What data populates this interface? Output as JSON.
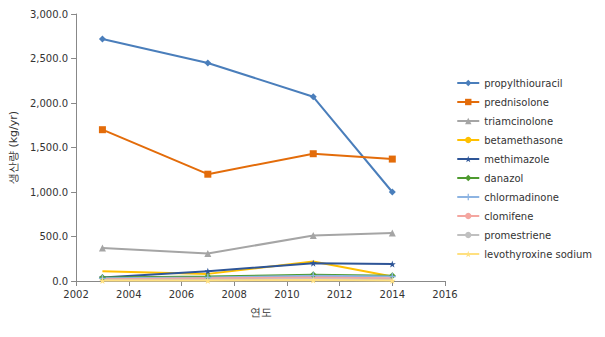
{
  "chart_data": {
    "type": "line",
    "x_label": "연도",
    "y_label": "생산량 (kg/yr)",
    "x": [
      2003,
      2007,
      2011,
      2014
    ],
    "xlim": [
      2002,
      2016
    ],
    "xticks": [
      2002,
      2004,
      2006,
      2008,
      2010,
      2012,
      2014,
      2016
    ],
    "ylim": [
      0,
      3000
    ],
    "yticks": [
      {
        "value": 0,
        "label": "0.0"
      },
      {
        "value": 500,
        "label": "500.0"
      },
      {
        "value": 1000,
        "label": "1,000.0"
      },
      {
        "value": 1500,
        "label": "1,500.0"
      },
      {
        "value": 2000,
        "label": "2,000.0"
      },
      {
        "value": 2500,
        "label": "2,500.0"
      },
      {
        "value": 3000,
        "label": "3,000.0"
      }
    ],
    "grid": false,
    "legend": "right",
    "series": [
      {
        "name": "propylthiouracil",
        "color": "#4a7ebb",
        "marker": "diamond",
        "values": [
          2720,
          2450,
          2070,
          1000
        ]
      },
      {
        "name": "prednisolone",
        "color": "#e36c0a",
        "marker": "square",
        "values": [
          1700,
          1200,
          1430,
          1370
        ]
      },
      {
        "name": "triamcinolone",
        "color": "#a5a5a5",
        "marker": "triangle",
        "values": [
          370,
          310,
          510,
          540
        ]
      },
      {
        "name": "betamethasone",
        "color": "#ffc000",
        "marker": "none",
        "values": [
          110,
          80,
          220,
          50
        ]
      },
      {
        "name": "methimazole",
        "color": "#2e5597",
        "marker": "star",
        "values": [
          40,
          110,
          200,
          190
        ]
      },
      {
        "name": "danazol",
        "color": "#4e9a2f",
        "marker": "diamond",
        "values": [
          40,
          50,
          70,
          60
        ]
      },
      {
        "name": "chlormadinone",
        "color": "#8db4e2",
        "marker": "plus",
        "values": [
          30,
          40,
          60,
          50
        ]
      },
      {
        "name": "clomifene",
        "color": "#f4a6a0",
        "marker": "none",
        "values": [
          20,
          30,
          40,
          30
        ]
      },
      {
        "name": "promestriene",
        "color": "#c0c0c0",
        "marker": "none",
        "values": [
          10,
          15,
          20,
          15
        ]
      },
      {
        "name": "levothyroxine sodium",
        "color": "#ffe080",
        "marker": "star",
        "values": [
          5,
          5,
          10,
          5
        ]
      }
    ]
  }
}
